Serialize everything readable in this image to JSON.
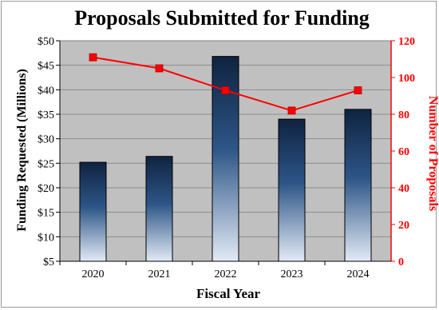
{
  "chart_data": {
    "type": "bar",
    "title": "Proposals Submitted for Funding",
    "xlabel": "Fiscal Year",
    "ylabel": "Funding Requested (Millions)",
    "y2label": "Number of Proposals",
    "categories": [
      "2020",
      "2021",
      "2022",
      "2023",
      "2024"
    ],
    "series": [
      {
        "type": "bar",
        "axis": "left",
        "values": [
          25.2,
          26.4,
          46.8,
          34.0,
          36.0
        ],
        "color_top": "#0f2340",
        "color_bottom": "#e2eaf5"
      },
      {
        "type": "line",
        "axis": "right",
        "values": [
          111,
          105,
          93,
          82,
          93
        ],
        "color": "#ff0000"
      }
    ],
    "ylim": [
      5,
      50
    ],
    "yticks": [
      "$5",
      "$10",
      "$15",
      "$20",
      "$25",
      "$30",
      "$35",
      "$40",
      "$45",
      "$50"
    ],
    "y2lim": [
      0,
      120
    ],
    "y2ticks": [
      "0",
      "20",
      "40",
      "60",
      "80",
      "100",
      "120"
    ],
    "grid": true,
    "plot_background": "#c0c0c0",
    "y2_axis_color": "#ff0000"
  }
}
